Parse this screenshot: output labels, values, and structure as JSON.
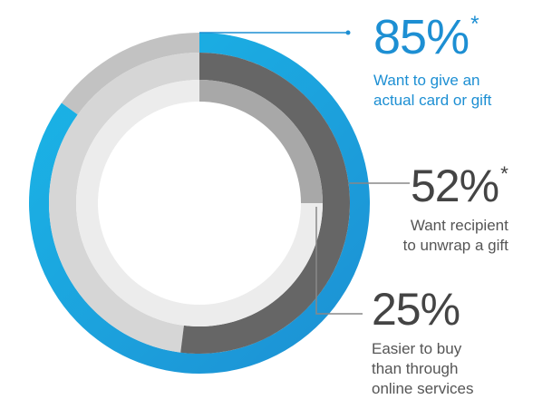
{
  "chart_data": {
    "type": "donut",
    "series": [
      {
        "value": 85,
        "label_value": "85%",
        "label_suffix": "*",
        "description": [
          "Want to give an",
          "actual card or gift"
        ],
        "color": "#1d8fd3",
        "color_end": "#1ab7e8",
        "track_color": "#c2c2c2"
      },
      {
        "value": 52,
        "label_value": "52%",
        "label_suffix": "*",
        "description": [
          "Want recipient",
          "to unwrap a gift"
        ],
        "color": "#666666",
        "track_color": "#d6d6d6"
      },
      {
        "value": 25,
        "label_value": "25%",
        "label_suffix": "",
        "description": [
          "Easier to buy",
          "than through",
          "online services"
        ],
        "color": "#a8a8a8",
        "track_color": "#ececec"
      }
    ],
    "leader_color_primary": "#1d8fd3",
    "leader_color_secondary": "#888888"
  }
}
